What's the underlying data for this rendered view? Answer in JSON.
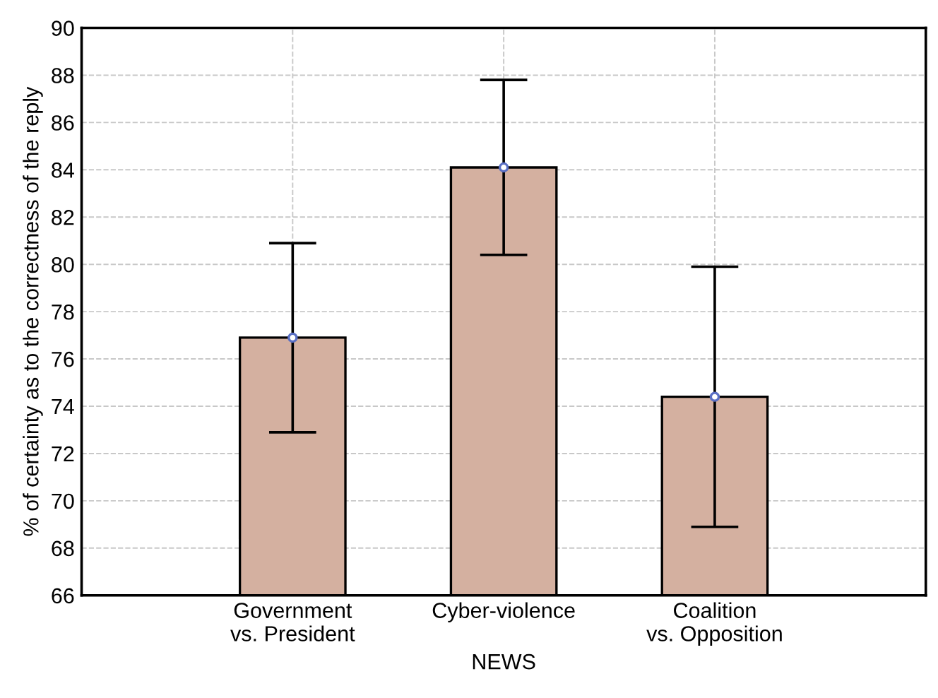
{
  "chart_data": {
    "type": "bar",
    "xlabel": "NEWS",
    "ylabel": "% of certainty as to the correctness of the reply",
    "categories": [
      "Government\nvs. President",
      "Cyber-violence",
      "Coalition\nvs. Opposition"
    ],
    "series": [
      {
        "color": "#d4b0a0",
        "values": [
          76.9,
          84.1,
          74.4
        ],
        "errors": [
          4.0,
          3.7,
          5.5
        ]
      },
      {
        "type": "scatter",
        "color": "#5a6fc4",
        "marker": "circle",
        "x": [
          "Government\nvs. President",
          "Cyber-violence",
          "Coalition\nvs. Opposition"
        ],
        "values": [
          76.9,
          84.1,
          74.4
        ]
      }
    ],
    "ylim": [
      66,
      90
    ],
    "yticks": [
      66,
      68,
      70,
      72,
      74,
      76,
      78,
      80,
      82,
      84,
      86,
      88,
      90
    ],
    "grid": true
  }
}
